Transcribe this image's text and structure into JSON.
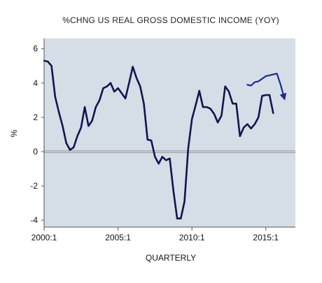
{
  "chart_data": {
    "type": "line",
    "title": "%CHNG US REAL GROSS DOMESTIC INCOME (YOY)",
    "xlabel": "QUARTERLY",
    "ylabel": "%",
    "xlim": [
      2000.0,
      2017.0
    ],
    "ylim": [
      -4.4,
      6.6
    ],
    "y_ticks": [
      6,
      4,
      2,
      0,
      -2,
      -4
    ],
    "y_tick_labels": [
      "6",
      "4",
      "2",
      "0",
      "-2",
      "-4"
    ],
    "x_ticks": [
      2000,
      2005,
      2010,
      2015
    ],
    "x_tick_labels": [
      "2000:1",
      "2005:1",
      "2010:1",
      "2015:1"
    ],
    "zero_line": true,
    "grid": false,
    "colors": {
      "plot_background": "#d5dde6",
      "series_main": "#141450",
      "series_projection": "#1c2c8c",
      "zero_line": "#8a8a8a",
      "axis": "#555555"
    },
    "series": [
      {
        "style": "solid",
        "x": [
          2000.0,
          2000.25,
          2000.5,
          2000.75,
          2001.0,
          2001.25,
          2001.5,
          2001.75,
          2002.0,
          2002.25,
          2002.5,
          2002.75,
          2003.0,
          2003.25,
          2003.5,
          2003.75,
          2004.0,
          2004.25,
          2004.5,
          2004.75,
          2005.0,
          2005.25,
          2005.5,
          2005.75,
          2006.0,
          2006.25,
          2006.5,
          2006.75,
          2007.0,
          2007.25,
          2007.5,
          2007.75,
          2008.0,
          2008.25,
          2008.5,
          2008.75,
          2009.0,
          2009.25,
          2009.5,
          2009.75,
          2010.0,
          2010.25,
          2010.5,
          2010.75,
          2011.0,
          2011.25,
          2011.5,
          2011.75,
          2012.0,
          2012.25,
          2012.5,
          2012.75,
          2013.0,
          2013.25,
          2013.5,
          2013.75,
          2014.0,
          2014.25,
          2014.5,
          2014.75,
          2015.0,
          2015.25
        ],
        "y": [
          5.3,
          5.25,
          5.0,
          3.2,
          2.3,
          1.5,
          0.5,
          0.1,
          0.25,
          0.9,
          1.4,
          2.6,
          1.5,
          1.8,
          2.6,
          3.0,
          3.7,
          3.8,
          4.0,
          3.5,
          3.7,
          3.4,
          3.1,
          4.0,
          4.95,
          4.3,
          3.8,
          2.8,
          0.7,
          0.65,
          -0.3,
          -0.7,
          -0.3,
          -0.5,
          -0.4,
          -2.3,
          -3.9,
          -3.9,
          -2.9,
          0.2,
          1.9,
          2.7,
          3.55,
          2.6,
          2.6,
          2.5,
          2.2,
          1.7,
          2.1,
          3.8,
          3.5,
          2.8,
          2.8,
          0.9,
          1.4,
          1.6,
          1.35,
          1.6,
          2.0,
          3.25,
          3.3,
          3.3
        ]
      },
      {
        "style": "solid",
        "x": [
          2015.25,
          2015.5
        ],
        "y": [
          3.3,
          2.25
        ]
      },
      {
        "style": "projection",
        "arrow": true,
        "x": [
          2013.75,
          2014.0,
          2014.25,
          2014.5,
          2014.75,
          2015.0,
          2015.25,
          2015.5,
          2015.75,
          2016.0,
          2016.25
        ],
        "y": [
          3.9,
          3.85,
          4.05,
          4.1,
          4.25,
          4.4,
          4.45,
          4.5,
          4.55,
          3.9,
          3.1
        ]
      }
    ]
  }
}
